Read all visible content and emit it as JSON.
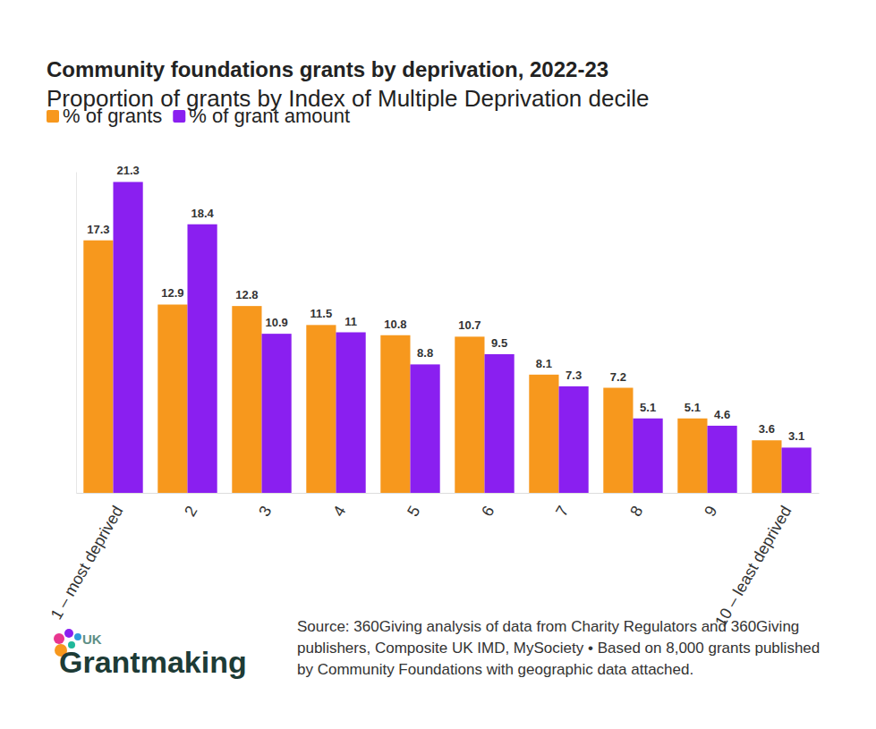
{
  "chart_data": {
    "type": "bar",
    "title": "Community foundations grants by deprivation, 2022-23",
    "subtitle": "Proportion of grants by Index of Multiple Deprivation decile",
    "categories": [
      "1 – most deprived",
      "2",
      "3",
      "4",
      "5",
      "6",
      "7",
      "8",
      "9",
      "10 – least deprived"
    ],
    "series": [
      {
        "name": "% of grants",
        "color": "#f7981d",
        "values": [
          17.3,
          12.9,
          12.8,
          11.5,
          10.8,
          10.7,
          8.1,
          7.2,
          5.1,
          3.6
        ]
      },
      {
        "name": "% of grant amount",
        "color": "#8a1ff0",
        "values": [
          21.3,
          18.4,
          10.9,
          11,
          8.8,
          9.5,
          7.3,
          5.1,
          4.6,
          3.1
        ]
      }
    ],
    "ylim": [
      0,
      22
    ],
    "data_labels": true,
    "tick_labels": "x",
    "legend": "top-left",
    "branding": [
      "UK",
      "Grantmaking"
    ],
    "source": "Source: 360Giving analysis of data from Charity Regulators and 360Giving publishers, Composite UK IMD, MySociety • Based on 8,000 grants published by Community Foundations with geographic data attached."
  }
}
